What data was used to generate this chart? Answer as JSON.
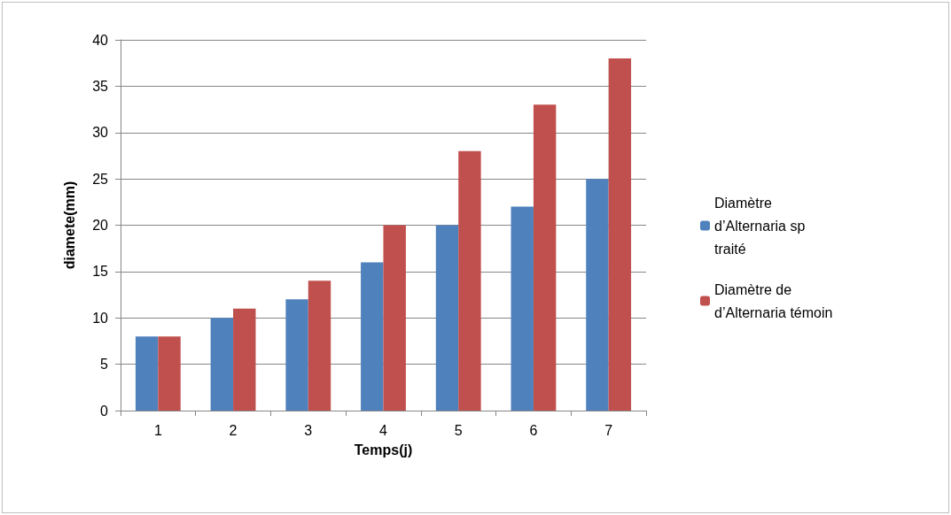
{
  "chart_data": {
    "type": "bar",
    "xlabel": "Temps(j)",
    "ylabel": "diamete(mm)",
    "categories": [
      "1",
      "2",
      "3",
      "4",
      "5",
      "6",
      "7"
    ],
    "series": [
      {
        "name": "Diamètre d’Alternaria sp traité",
        "color": "#4f81bd",
        "values": [
          8,
          10,
          12,
          16,
          20,
          22,
          25
        ]
      },
      {
        "name": "Diamètre de d’Alternaria témoin",
        "color": "#c0504d",
        "values": [
          8,
          11,
          14,
          20,
          28,
          33,
          38
        ]
      }
    ],
    "ylim": [
      0,
      40
    ],
    "yticks": [
      0,
      5,
      10,
      15,
      20,
      25,
      30,
      35,
      40
    ],
    "grid": "y",
    "legend": "right"
  }
}
